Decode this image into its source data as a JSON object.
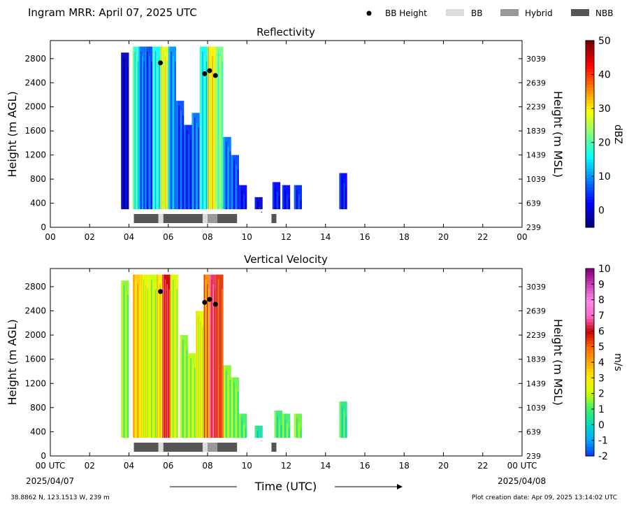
{
  "header": {
    "title": "Ingram MRR:  April 07, 2025 UTC",
    "legend": [
      {
        "label": "BB Height",
        "kind": "dot",
        "color": "#000000"
      },
      {
        "label": "BB",
        "kind": "patch",
        "color": "#dcdcdc"
      },
      {
        "label": "Hybrid",
        "kind": "patch",
        "color": "#999999"
      },
      {
        "label": "NBB",
        "kind": "patch",
        "color": "#555555"
      }
    ]
  },
  "footer": {
    "location": "38.8862 N, 123.1513 W, 239 m",
    "creation": "Plot creation date: Apr 09, 2025 13:14:02 UTC",
    "xlabel": "Time (UTC)",
    "start_date": "2025/04/07",
    "end_date": "2025/04/08"
  },
  "chart_data": [
    {
      "type": "heatmap",
      "title": "Reflectivity",
      "ylabel": "Height (m AGL)",
      "y2label": "Height (m MSL)",
      "xlim": [
        0,
        24
      ],
      "ylim": [
        0,
        3100
      ],
      "x_ticks": [
        "00",
        "02",
        "04",
        "06",
        "08",
        "10",
        "12",
        "14",
        "16",
        "18",
        "20",
        "22",
        "00"
      ],
      "y_ticks": [
        0,
        400,
        800,
        1200,
        1600,
        2000,
        2400,
        2800
      ],
      "y2_ticks": [
        239,
        639,
        1039,
        1439,
        1839,
        2239,
        2639,
        3039
      ],
      "colorbar": {
        "label": "dBZ",
        "min": -5,
        "max": 50,
        "ticks": [
          0,
          10,
          20,
          30,
          40,
          50
        ],
        "colors": [
          "#00007f",
          "#0000ff",
          "#007fff",
          "#00ffff",
          "#7fff7f",
          "#ffff00",
          "#ff7f00",
          "#ff0000",
          "#7f0000"
        ]
      },
      "bb_height_m": [
        [
          5.6,
          2730
        ],
        [
          7.85,
          2550
        ],
        [
          8.1,
          2600
        ],
        [
          8.4,
          2520
        ]
      ],
      "bb_class": [
        {
          "start": 4.25,
          "end": 5.5,
          "class": "NBB"
        },
        {
          "start": 5.5,
          "end": 5.75,
          "class": "BB"
        },
        {
          "start": 5.75,
          "end": 7.75,
          "class": "NBB"
        },
        {
          "start": 7.75,
          "end": 8.0,
          "class": "BB"
        },
        {
          "start": 8.0,
          "end": 8.5,
          "class": "Hybrid"
        },
        {
          "start": 8.5,
          "end": 9.5,
          "class": "NBB"
        },
        {
          "start": 11.25,
          "end": 11.5,
          "class": "NBB"
        }
      ],
      "columns": [
        {
          "t": 3.6,
          "top": 2900,
          "value": -2
        },
        {
          "t": 4.2,
          "top": 3000,
          "value": 18
        },
        {
          "t": 4.5,
          "top": 3000,
          "value": 8
        },
        {
          "t": 4.8,
          "top": 3000,
          "value": 6
        },
        {
          "t": 5.2,
          "top": 3000,
          "value": 16
        },
        {
          "t": 5.6,
          "top": 3000,
          "value": 28
        },
        {
          "t": 6.0,
          "top": 3000,
          "value": 10
        },
        {
          "t": 6.4,
          "top": 2100,
          "value": 6
        },
        {
          "t": 6.8,
          "top": 1700,
          "value": 4
        },
        {
          "t": 7.2,
          "top": 1900,
          "value": 8
        },
        {
          "t": 7.6,
          "top": 3000,
          "value": 16
        },
        {
          "t": 8.0,
          "top": 3000,
          "value": 30
        },
        {
          "t": 8.4,
          "top": 3000,
          "value": 22
        },
        {
          "t": 8.8,
          "top": 1500,
          "value": 8
        },
        {
          "t": 9.2,
          "top": 1200,
          "value": 6
        },
        {
          "t": 9.6,
          "top": 700,
          "value": 2
        },
        {
          "t": 10.4,
          "top": 500,
          "value": 0
        },
        {
          "t": 11.3,
          "top": 750,
          "value": 2
        },
        {
          "t": 11.8,
          "top": 700,
          "value": 2
        },
        {
          "t": 12.4,
          "top": 700,
          "value": 4
        },
        {
          "t": 14.7,
          "top": 900,
          "value": 2
        }
      ]
    },
    {
      "type": "heatmap",
      "title": "Vertical Velocity",
      "ylabel": "Height (m AGL)",
      "y2label": "Height (m MSL)",
      "xlim": [
        0,
        24
      ],
      "ylim": [
        0,
        3100
      ],
      "x_ticks": [
        "00 UTC",
        "02",
        "04",
        "06",
        "08",
        "10",
        "12",
        "14",
        "16",
        "18",
        "20",
        "22",
        "00 UTC"
      ],
      "y_ticks": [
        0,
        400,
        800,
        1200,
        1600,
        2000,
        2400,
        2800
      ],
      "y2_ticks": [
        239,
        639,
        1039,
        1439,
        1839,
        2239,
        2639,
        3039
      ],
      "colorbar": {
        "label": "m/s",
        "min": -2,
        "max": 10,
        "ticks": [
          -2,
          -1,
          0,
          1,
          2,
          3,
          4,
          5,
          6,
          7,
          8,
          9,
          10
        ],
        "colors": [
          "#0044ff",
          "#00aaff",
          "#00ddbb",
          "#44ee66",
          "#ccff00",
          "#ffee00",
          "#ffaa00",
          "#ff6600",
          "#cc0000",
          "#ff66cc",
          "#ff88ee",
          "#cc44bb",
          "#880088"
        ]
      },
      "bb_height_m": [
        [
          5.6,
          2720
        ],
        [
          7.85,
          2540
        ],
        [
          8.1,
          2590
        ],
        [
          8.4,
          2510
        ]
      ],
      "bb_class": [
        {
          "start": 4.25,
          "end": 5.5,
          "class": "NBB"
        },
        {
          "start": 5.5,
          "end": 5.75,
          "class": "BB"
        },
        {
          "start": 5.75,
          "end": 7.75,
          "class": "NBB"
        },
        {
          "start": 7.75,
          "end": 8.0,
          "class": "BB"
        },
        {
          "start": 8.0,
          "end": 8.5,
          "class": "Hybrid"
        },
        {
          "start": 8.5,
          "end": 9.5,
          "class": "NBB"
        },
        {
          "start": 11.25,
          "end": 11.5,
          "class": "NBB"
        }
      ],
      "columns": [
        {
          "t": 3.6,
          "top": 2900,
          "value": 1.5
        },
        {
          "t": 4.2,
          "top": 3000,
          "value": 3.5
        },
        {
          "t": 4.6,
          "top": 3000,
          "value": 2.5
        },
        {
          "t": 5.0,
          "top": 3000,
          "value": 2.0
        },
        {
          "t": 5.4,
          "top": 3000,
          "value": 3.0
        },
        {
          "t": 5.7,
          "top": 3000,
          "value": 6.0
        },
        {
          "t": 6.1,
          "top": 3000,
          "value": 2.2
        },
        {
          "t": 6.6,
          "top": 2000,
          "value": 1.5
        },
        {
          "t": 7.0,
          "top": 1700,
          "value": 1.8
        },
        {
          "t": 7.4,
          "top": 2400,
          "value": 2.5
        },
        {
          "t": 7.8,
          "top": 3000,
          "value": 4.5
        },
        {
          "t": 8.1,
          "top": 3000,
          "value": 6.5
        },
        {
          "t": 8.4,
          "top": 3000,
          "value": 5.5
        },
        {
          "t": 8.8,
          "top": 1500,
          "value": 1.5
        },
        {
          "t": 9.2,
          "top": 1300,
          "value": 1.3
        },
        {
          "t": 9.6,
          "top": 700,
          "value": 1.0
        },
        {
          "t": 10.4,
          "top": 500,
          "value": 0.3
        },
        {
          "t": 11.4,
          "top": 750,
          "value": 0.8
        },
        {
          "t": 11.8,
          "top": 700,
          "value": 1.0
        },
        {
          "t": 12.4,
          "top": 700,
          "value": 1.3
        },
        {
          "t": 14.7,
          "top": 900,
          "value": 0.6
        }
      ]
    }
  ]
}
